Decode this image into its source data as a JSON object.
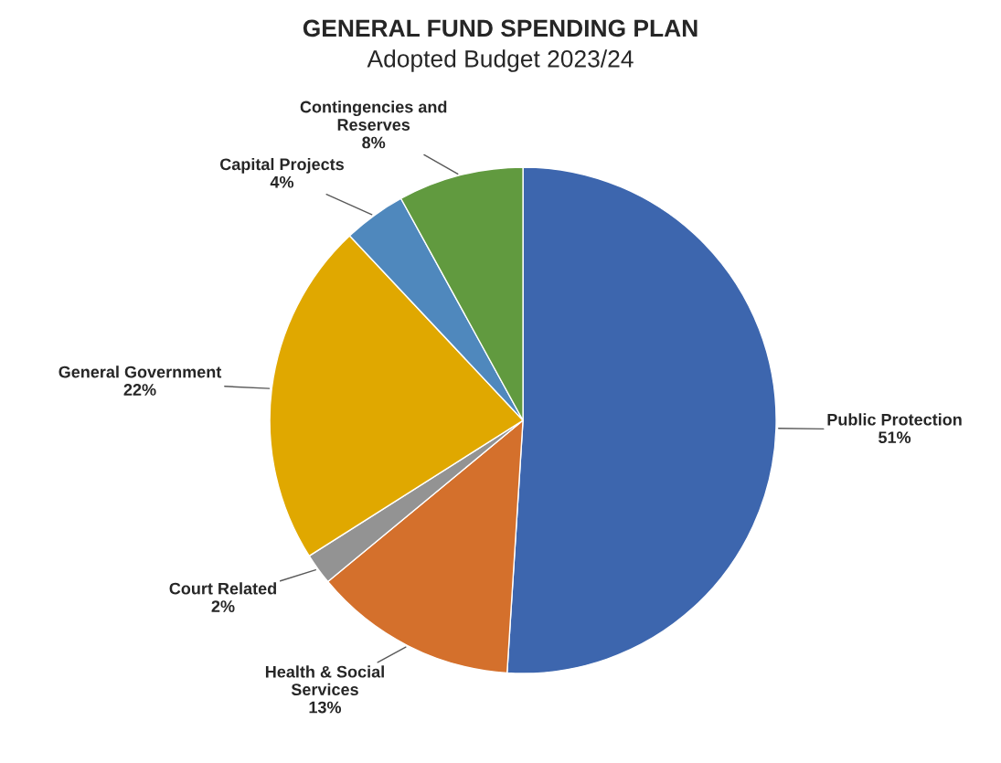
{
  "chart_data": {
    "type": "pie",
    "title": "GENERAL FUND SPENDING PLAN",
    "subtitle": "Adopted Budget 2023/24",
    "categories": [
      "Public Protection",
      "Health & Social\nServices",
      "Court Related",
      "General Government",
      "Capital Projects",
      "Contingencies and\nReserves"
    ],
    "values": [
      51,
      13,
      2,
      22,
      4,
      8
    ],
    "value_labels": [
      "51%",
      "13%",
      "2%",
      "22%",
      "4%",
      "8%"
    ],
    "colors": [
      "#3d66ae",
      "#d4702c",
      "#939393",
      "#e0a800",
      "#4f88bd",
      "#619a3f"
    ],
    "legend": false
  }
}
